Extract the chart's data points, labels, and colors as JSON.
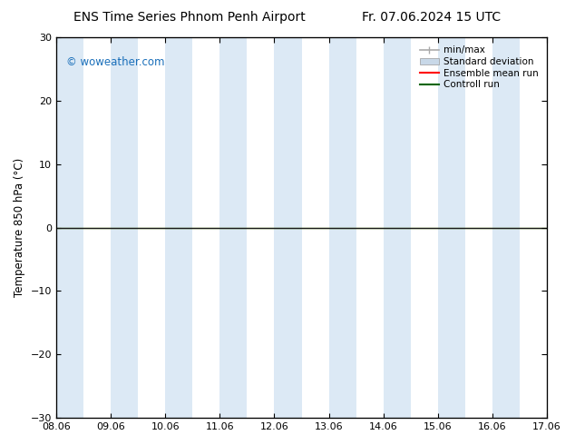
{
  "title": "ENS Time Series Phnom Penh Airport",
  "title_right": "Fr. 07.06.2024 15 UTC",
  "ylabel": "Temperature 850 hPa (°C)",
  "watermark": "© woweather.com",
  "xlim_min": 8.06,
  "xlim_max": 17.06,
  "ylim_min": -30,
  "ylim_max": 30,
  "yticks": [
    -30,
    -20,
    -10,
    0,
    10,
    20,
    30
  ],
  "xtick_labels": [
    "08.06",
    "09.06",
    "10.06",
    "11.06",
    "12.06",
    "13.06",
    "14.06",
    "15.06",
    "16.06",
    "17.06"
  ],
  "xtick_positions": [
    8.06,
    9.06,
    10.06,
    11.06,
    12.06,
    13.06,
    14.06,
    15.06,
    16.06,
    17.06
  ],
  "background_color": "#ffffff",
  "shaded_bands": [
    {
      "x_start": 8.06,
      "x_end": 8.56
    },
    {
      "x_start": 9.06,
      "x_end": 9.56
    },
    {
      "x_start": 10.06,
      "x_end": 10.56
    },
    {
      "x_start": 11.06,
      "x_end": 11.56
    },
    {
      "x_start": 12.06,
      "x_end": 12.56
    },
    {
      "x_start": 13.06,
      "x_end": 13.56
    },
    {
      "x_start": 14.06,
      "x_end": 14.56
    },
    {
      "x_start": 15.06,
      "x_end": 15.56
    },
    {
      "x_start": 16.06,
      "x_end": 16.56
    }
  ],
  "shaded_color": "#dce9f5",
  "zero_line_color": "#1a1a1a",
  "control_run_color": "#006400",
  "ensemble_mean_color": "#ff0000",
  "minmax_color": "#aaaaaa",
  "stddev_color": "#c8d8e8",
  "control_run_y": 0,
  "ensemble_mean_y": 0,
  "legend_items": [
    "min/max",
    "Standard deviation",
    "Ensemble mean run",
    "Controll run"
  ],
  "legend_colors": [
    "#999999",
    "#c8d8e8",
    "#ff0000",
    "#006400"
  ],
  "watermark_color": "#1a6fba",
  "title_fontsize": 10,
  "axis_fontsize": 8.5,
  "tick_fontsize": 8
}
